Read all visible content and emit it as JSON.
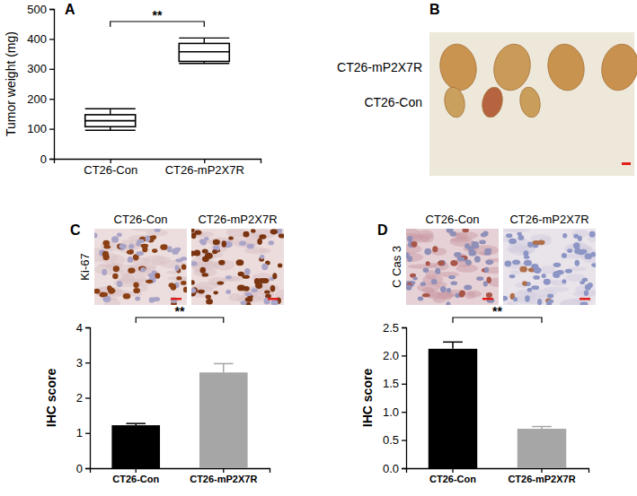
{
  "chart_data": [
    {
      "type": "box",
      "title": "A",
      "categories": [
        "CT26-Con",
        "CT26-mP2X7R"
      ],
      "values": [
        {
          "min": 95,
          "q1": 107,
          "median": 127,
          "q3": 147,
          "max": 167
        },
        {
          "min": 318,
          "q1": 325,
          "median": 357,
          "q3": 385,
          "max": 403
        }
      ],
      "y_label": "Tumor weight (mg)",
      "ylim": [
        0,
        500
      ],
      "yticks": [
        0,
        100,
        200,
        300,
        400,
        500
      ],
      "annotations": [
        "**"
      ],
      "color": "#000000"
    },
    {
      "type": "image",
      "title": "B",
      "row_labels": [
        "CT26-mP2X7R",
        "CT26-Con"
      ],
      "counts": [
        4,
        3
      ]
    },
    {
      "type": "bar",
      "title": "C",
      "image_title": "Ki-67",
      "image_labels": [
        "CT26-Con",
        "CT26-mP2X7R"
      ],
      "categories": [
        "CT26-Con",
        "CT26-mP2X7R"
      ],
      "values": [
        1.22,
        2.72
      ],
      "errors": [
        0.05,
        0.25
      ],
      "colors": [
        "#000000",
        "#a6a6a6"
      ],
      "y_label": "IHC score",
      "ylim": [
        0,
        4
      ],
      "yticks": [
        0,
        1,
        2,
        3,
        4
      ],
      "annotations": [
        "**"
      ]
    },
    {
      "type": "bar",
      "title": "D",
      "image_title": "C Cas 3",
      "image_labels": [
        "CT26-Con",
        "CT26-mP2X7R"
      ],
      "categories": [
        "CT26-Con",
        "CT26-mP2X7R"
      ],
      "values": [
        2.12,
        0.7
      ],
      "errors": [
        0.12,
        0.04
      ],
      "colors": [
        "#000000",
        "#a6a6a6"
      ],
      "y_label": "IHC score",
      "ylim": [
        0,
        2.5
      ],
      "yticks": [
        {
          "value": 0,
          "label": "0.0"
        },
        0.5,
        {
          "value": 1,
          "label": "1.0"
        },
        1.5,
        {
          "value": 2,
          "label": "2.0"
        },
        2.5
      ],
      "annotations": [
        "**"
      ]
    }
  ]
}
